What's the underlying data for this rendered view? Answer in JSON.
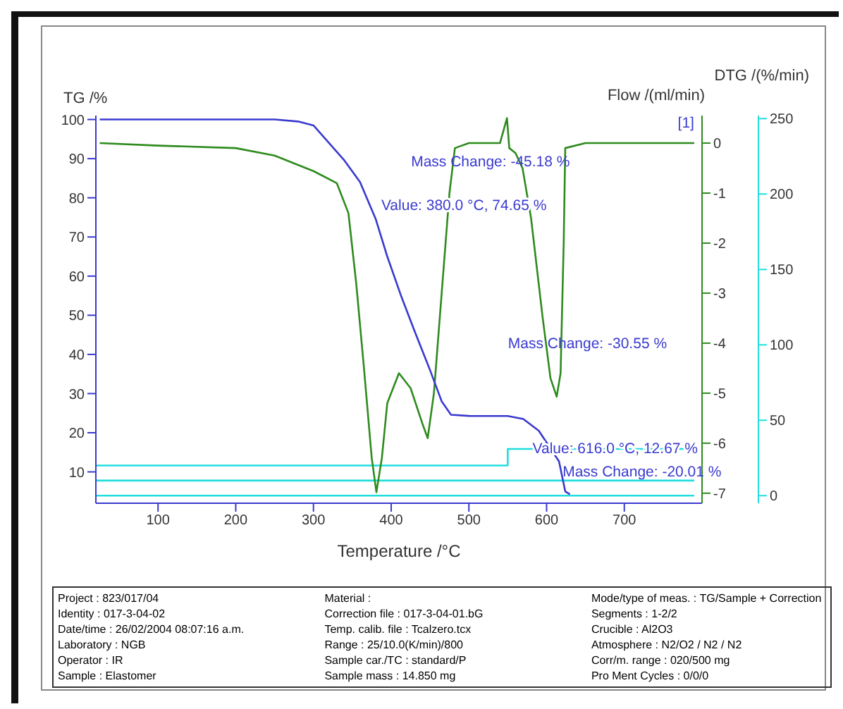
{
  "chart_data": [
    {
      "type": "line",
      "xlabel": "Temperature /°C",
      "ylabel": "TG /%",
      "y2label": "Flow /(ml/min)",
      "y3label": "DTG /(%/min)",
      "xlim": [
        20,
        800
      ],
      "xticks": [
        100,
        200,
        300,
        400,
        500,
        600,
        700
      ],
      "ylim": [
        2,
        101
      ],
      "yticks": [
        10,
        20,
        30,
        40,
        50,
        60,
        70,
        80,
        90,
        100
      ],
      "y2lim": [
        -5,
        252
      ],
      "y2ticks": [
        0,
        50,
        100,
        150,
        200,
        250
      ],
      "y3lim": [
        -7.2,
        0.55
      ],
      "y3ticks": [
        -7,
        -6,
        -5,
        -4,
        -3,
        -2,
        -1,
        0
      ],
      "grid": false,
      "marker": "none",
      "series": [
        {
          "color": "#22dddd",
          "axis": "y2",
          "type": "step",
          "x": [
            20,
            550,
            790
          ],
          "values": [
            20,
            31,
            31
          ]
        },
        {
          "color": "#22dddd",
          "axis": "y2",
          "type": "line",
          "x": [
            20,
            790
          ],
          "values": [
            10,
            10
          ]
        },
        {
          "color": "#22dddd",
          "axis": "y2",
          "type": "line",
          "x": [
            20,
            790
          ],
          "values": [
            0,
            0
          ]
        },
        {
          "color": "#2e8b1e",
          "axis": "y3",
          "type": "line",
          "x": [
            25,
            100,
            200,
            250,
            300,
            330,
            345,
            355,
            365,
            375,
            381,
            388,
            395,
            410,
            425,
            440,
            447,
            455,
            465,
            475,
            482,
            500,
            540,
            549,
            552,
            560,
            569,
            580,
            595,
            605,
            613,
            618,
            622,
            624,
            650,
            700,
            750,
            790
          ],
          "values": [
            0,
            -0.05,
            -0.1,
            -0.25,
            -0.56,
            -0.8,
            -1.4,
            -2.8,
            -4.5,
            -6.3,
            -6.98,
            -6.3,
            -5.2,
            -4.6,
            -4.9,
            -5.6,
            -5.9,
            -5.0,
            -3.0,
            -1.0,
            -0.1,
            0,
            0,
            0.5,
            -0.1,
            -0.2,
            -0.5,
            -1.5,
            -3.5,
            -4.7,
            -5.07,
            -4.6,
            -2,
            -0.1,
            0,
            0,
            0,
            0
          ]
        },
        {
          "color": "#3a3ad0",
          "axis": "y",
          "type": "line",
          "x": [
            25,
            250,
            280,
            300,
            340,
            360,
            380,
            395,
            413,
            430,
            450,
            465,
            477,
            500,
            550,
            570,
            590,
            605,
            616,
            624,
            630
          ],
          "values": [
            100,
            100,
            99.5,
            98.5,
            89.5,
            84,
            74.65,
            65,
            54.82,
            46,
            36,
            28,
            24.6,
            24.3,
            24.27,
            23.5,
            20.5,
            16,
            12.67,
            5,
            4.26
          ]
        }
      ],
      "annotations": [
        {
          "text": "Value: 380.0 °C, 74.65 %",
          "x": 380,
          "y": 74.65
        },
        {
          "text": "Value: 616.0 °C, 12.67 %",
          "x": 616,
          "y": 12.67
        },
        "Mass Change: -45.18 %",
        "Mass Change: -30.55 %",
        "Mass Change: -20.01 %",
        "[1]"
      ]
    },
    {
      "type": "other",
      "annotations": [
        "Project : 823/017/04",
        "Identity : 017-3-04-02",
        "Date/time : 26/02/2004 08:07:16 a.m.",
        "Laboratory : NGB",
        "Operator : IR",
        "Sample : Elastomer",
        "Material :",
        "Correction file : 017-3-04-01.bG",
        "Temp. calib. file : Tcalzero.tcx",
        "Range : 25/10.0(K/min)/800",
        "Sample car./TC : standard/P",
        "Sample mass : 14.850 mg",
        "Mode/type of meas. : TG/Sample + Correction",
        "Segments : 1-2/2",
        "Crucible : Al2O3",
        "Atmosphere : N2/O2 / N2 / N2",
        "Corr/m. range : 020/500 mg",
        "Pro Ment Cycles : 0/0/0"
      ]
    }
  ]
}
